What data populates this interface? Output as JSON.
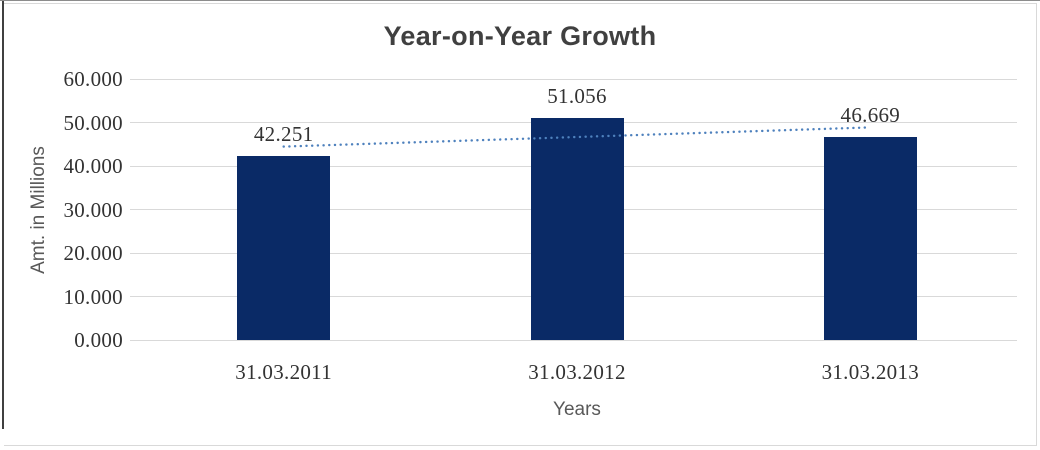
{
  "chart_data": {
    "type": "bar",
    "title": "Year-on-Year Growth",
    "xlabel": "Years",
    "ylabel": "Amt. in Millions",
    "categories": [
      "31.03.2011",
      "31.03.2012",
      "31.03.2013"
    ],
    "values": [
      42251,
      51056,
      46669
    ],
    "value_labels": [
      "42.251",
      "51.056",
      "46.669"
    ],
    "ylim": [
      0,
      60000
    ],
    "ytick_step": 10000,
    "ytick_labels": [
      "0.000",
      "10.000",
      "20.000",
      "30.000",
      "40.000",
      "50.000",
      "60.000"
    ],
    "grid": true,
    "legend_position": "none",
    "trendline": {
      "type": "linear",
      "style": "dotted",
      "color": "#4e81bd"
    },
    "colors": {
      "bar": "#0a2a66",
      "gridline": "#d9d9d9",
      "title_text": "#404040",
      "number_text": "#333333",
      "axis_title_text": "#595959"
    }
  }
}
